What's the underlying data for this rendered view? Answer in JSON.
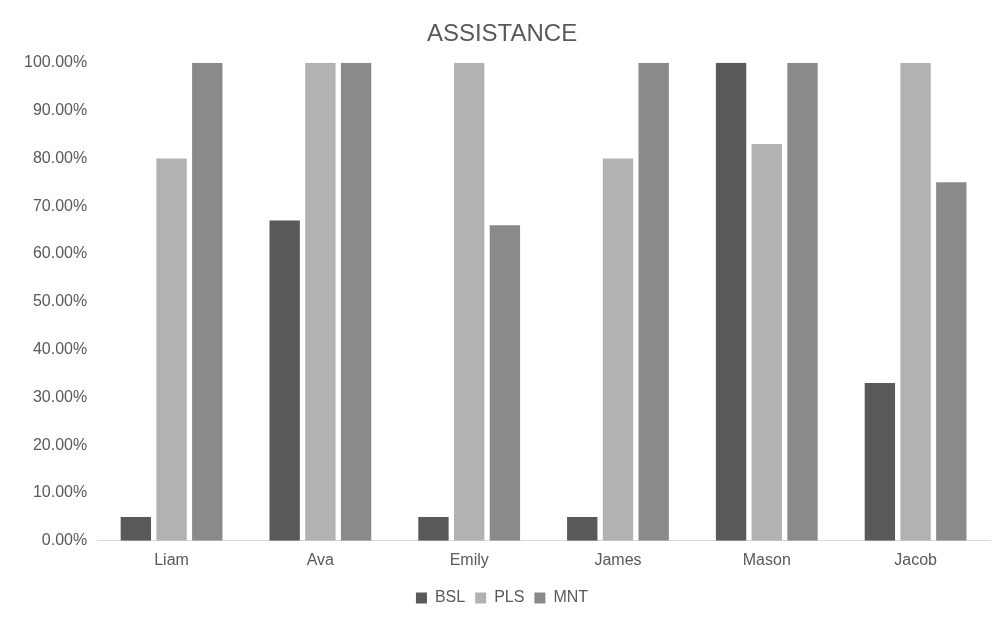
{
  "chart_data": {
    "type": "bar",
    "title": "ASSISTANCE",
    "categories": [
      "Liam",
      "Ava",
      "Emily",
      "James",
      "Mason",
      "Jacob"
    ],
    "series": [
      {
        "name": "BSL",
        "color": "#595959",
        "values": [
          5,
          67,
          5,
          5,
          100,
          33
        ]
      },
      {
        "name": "PLS",
        "color": "#b2b2b2",
        "values": [
          80,
          100,
          100,
          80,
          83,
          100
        ]
      },
      {
        "name": "MNT",
        "color": "#8a8a8a",
        "values": [
          100,
          100,
          66,
          100,
          100,
          75
        ]
      }
    ],
    "ylim": [
      0,
      100
    ],
    "yticks": [
      {
        "value": 0,
        "label": "0.00%"
      },
      {
        "value": 10,
        "label": "10.00%"
      },
      {
        "value": 20,
        "label": "20.00%"
      },
      {
        "value": 30,
        "label": "30.00%"
      },
      {
        "value": 40,
        "label": "40.00%"
      },
      {
        "value": 50,
        "label": "50.00%"
      },
      {
        "value": 60,
        "label": "60.00%"
      },
      {
        "value": 70,
        "label": "70.00%"
      },
      {
        "value": 80,
        "label": "80.00%"
      },
      {
        "value": 90,
        "label": "90.00%"
      },
      {
        "value": 100,
        "label": "100.00%"
      }
    ],
    "grid": false,
    "legend": "bottom"
  }
}
